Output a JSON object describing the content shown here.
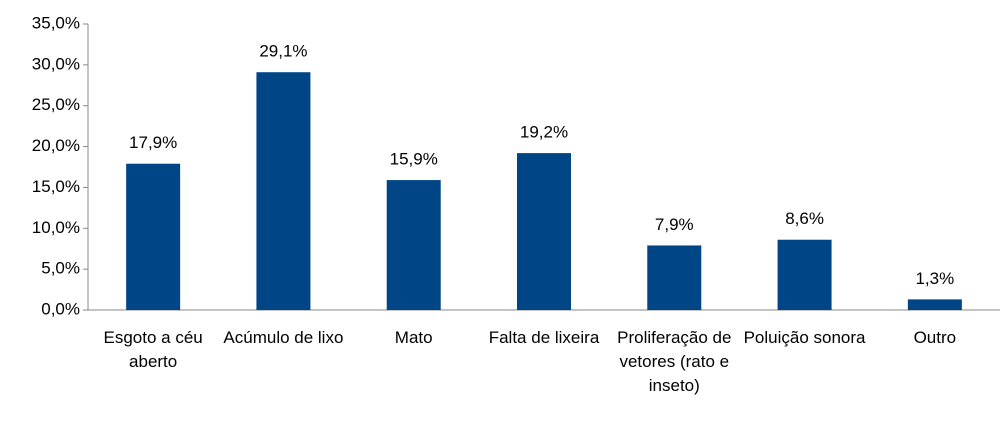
{
  "chart_data": {
    "type": "bar",
    "categories": [
      "Esgoto a céu aberto",
      "Acúmulo de lixo",
      "Mato",
      "Falta de lixeira",
      "Proliferação de vetores (rato e inseto)",
      "Poluição sonora",
      "Outro"
    ],
    "values": [
      17.9,
      29.1,
      15.9,
      19.2,
      7.9,
      8.6,
      1.3
    ],
    "value_labels": [
      "17,9%",
      "29,1%",
      "15,9%",
      "19,2%",
      "7,9%",
      "8,6%",
      "1,3%"
    ],
    "color": "#004586",
    "ylim": [
      0,
      35
    ],
    "yticks": [
      {
        "value": 0,
        "label": "0,0%"
      },
      {
        "value": 5,
        "label": "5,0%"
      },
      {
        "value": 10,
        "label": "10,0%"
      },
      {
        "value": 15,
        "label": "15,0%"
      },
      {
        "value": 20,
        "label": "20,0%"
      },
      {
        "value": 25,
        "label": "25,0%"
      },
      {
        "value": 30,
        "label": "30,0%"
      },
      {
        "value": 35,
        "label": "35,0%"
      }
    ],
    "grid": false
  }
}
